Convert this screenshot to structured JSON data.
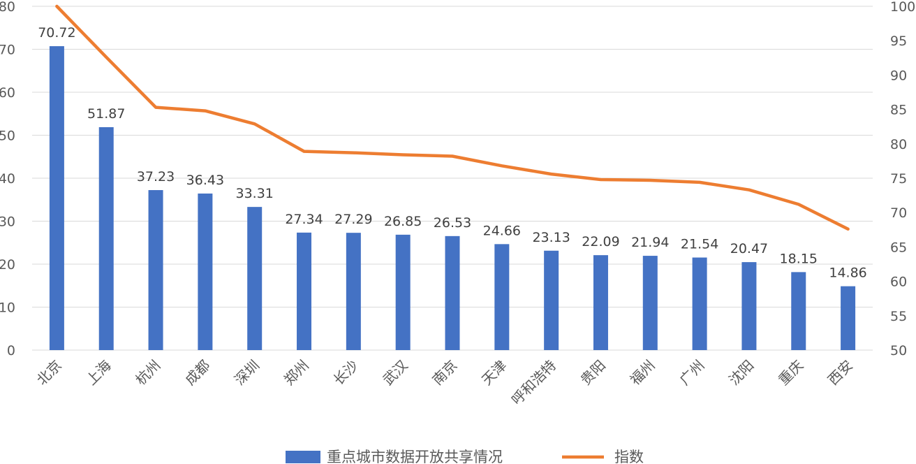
{
  "chart_data": {
    "type": "bar",
    "categories": [
      "北京",
      "上海",
      "杭州",
      "成都",
      "深圳",
      "郑州",
      "长沙",
      "武汉",
      "南京",
      "天津",
      "呼和浩特",
      "贵阳",
      "福州",
      "广州",
      "沈阳",
      "重庆",
      "西安"
    ],
    "series": [
      {
        "name": "重点城市数据开放共享情况",
        "type": "bar",
        "axis": "left",
        "color": "#4472C4",
        "values": [
          70.72,
          51.87,
          37.23,
          36.43,
          33.31,
          27.34,
          27.29,
          26.85,
          26.53,
          24.66,
          23.13,
          22.09,
          21.94,
          21.54,
          20.47,
          18.15,
          14.86
        ],
        "labels": [
          "70.72",
          "51.87",
          "37.23",
          "36.43",
          "33.31",
          "27.34",
          "27.29",
          "26.85",
          "26.53",
          "24.66",
          "23.13",
          "22.09",
          "21.94",
          "21.54",
          "20.47",
          "18.15",
          "14.86"
        ]
      },
      {
        "name": "指数",
        "type": "line",
        "axis": "right",
        "color": "#ED7D31",
        "values": [
          100,
          92.6,
          85.3,
          84.8,
          82.9,
          78.9,
          78.7,
          78.4,
          78.2,
          76.8,
          75.6,
          74.8,
          74.7,
          74.4,
          73.3,
          71.2,
          67.6
        ]
      }
    ],
    "y_left": {
      "min": 0,
      "max": 80,
      "step": 10,
      "ticks": [
        "0",
        "10",
        "20",
        "30",
        "40",
        "50",
        "60",
        "70",
        "80"
      ]
    },
    "y_right": {
      "min": 50,
      "max": 100,
      "step": 5,
      "ticks": [
        "50",
        "55",
        "60",
        "65",
        "70",
        "75",
        "80",
        "85",
        "90",
        "95",
        "100"
      ]
    },
    "grid": true,
    "legend": {
      "position": "bottom"
    }
  }
}
